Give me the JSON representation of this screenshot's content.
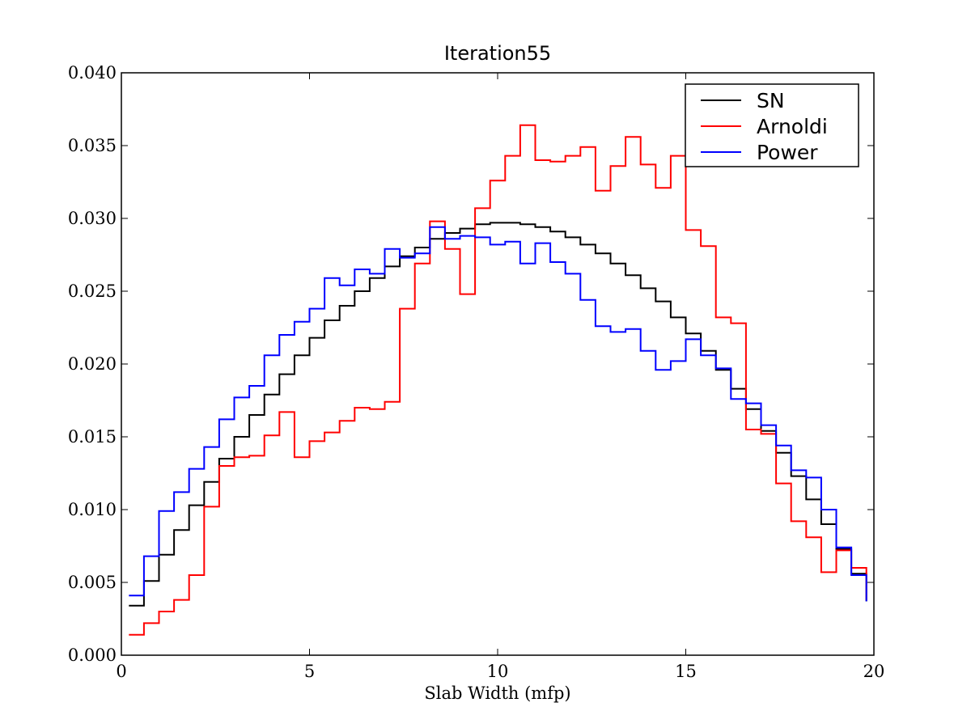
{
  "chart_data": {
    "type": "line",
    "step": "post",
    "title": "Iteration55",
    "xlabel": "Slab Width (mfp)",
    "ylabel": "",
    "xlim": [
      0,
      20
    ],
    "ylim": [
      0,
      0.04
    ],
    "xticks": [
      0,
      5,
      10,
      15,
      20
    ],
    "yticks": [
      0,
      0.005,
      0.01,
      0.015,
      0.02,
      0.025,
      0.03,
      0.035,
      0.04
    ],
    "xtick_labels": [
      "0",
      "5",
      "10",
      "15",
      "20"
    ],
    "ytick_labels": [
      "0.000",
      "0.005",
      "0.010",
      "0.015",
      "0.020",
      "0.025",
      "0.030",
      "0.035",
      "0.040"
    ],
    "grid": false,
    "legend_position": "top-right",
    "bin_edges": [
      0.2,
      0.6,
      1.0,
      1.4,
      1.8,
      2.2,
      2.6,
      3.0,
      3.4,
      3.8,
      4.2,
      4.6,
      5.0,
      5.4,
      5.8,
      6.2,
      6.6,
      7.0,
      7.4,
      7.8,
      8.2,
      8.6,
      9.0,
      9.4,
      9.8,
      10.2,
      10.6,
      11.0,
      11.4,
      11.8,
      12.2,
      12.6,
      13.0,
      13.4,
      13.8,
      14.2,
      14.6,
      15.0,
      15.4,
      15.8,
      16.2,
      16.6,
      17.0,
      17.4,
      17.8,
      18.2,
      18.6,
      19.0,
      19.4,
      19.8
    ],
    "series": [
      {
        "name": "SN",
        "color": "#000000",
        "values": [
          0.0034,
          0.0051,
          0.0069,
          0.0086,
          0.0103,
          0.0119,
          0.0135,
          0.015,
          0.0165,
          0.0179,
          0.0193,
          0.0206,
          0.0218,
          0.023,
          0.024,
          0.025,
          0.0259,
          0.0267,
          0.0274,
          0.028,
          0.0286,
          0.029,
          0.0293,
          0.0296,
          0.0297,
          0.0297,
          0.0296,
          0.0294,
          0.0291,
          0.0287,
          0.0282,
          0.0276,
          0.0269,
          0.0261,
          0.0252,
          0.0243,
          0.0232,
          0.0221,
          0.0209,
          0.0196,
          0.0183,
          0.0169,
          0.0154,
          0.0139,
          0.0123,
          0.0107,
          0.009,
          0.0073,
          0.0056,
          0.0037
        ]
      },
      {
        "name": "Arnoldi",
        "color": "#ff0000",
        "values": [
          0.0014,
          0.0022,
          0.003,
          0.0038,
          0.0055,
          0.0102,
          0.013,
          0.0136,
          0.0137,
          0.0151,
          0.0167,
          0.0136,
          0.0147,
          0.0153,
          0.0161,
          0.017,
          0.0169,
          0.0174,
          0.0238,
          0.0269,
          0.0298,
          0.0279,
          0.0248,
          0.0307,
          0.0326,
          0.0343,
          0.0364,
          0.034,
          0.0339,
          0.0343,
          0.0349,
          0.0319,
          0.0336,
          0.0356,
          0.0337,
          0.0321,
          0.0343,
          0.0292,
          0.0281,
          0.0232,
          0.0228,
          0.0155,
          0.0152,
          0.0118,
          0.0092,
          0.0081,
          0.0057,
          0.0072,
          0.006,
          0.0038
        ]
      },
      {
        "name": "Power",
        "color": "#0000ff",
        "values": [
          0.0041,
          0.0068,
          0.0099,
          0.0112,
          0.0128,
          0.0143,
          0.0162,
          0.0177,
          0.0185,
          0.0206,
          0.022,
          0.0229,
          0.0238,
          0.0259,
          0.0254,
          0.0265,
          0.0262,
          0.0279,
          0.0273,
          0.0276,
          0.0294,
          0.0286,
          0.0288,
          0.0287,
          0.0282,
          0.0284,
          0.0269,
          0.0283,
          0.027,
          0.0262,
          0.0244,
          0.0226,
          0.0222,
          0.0224,
          0.0209,
          0.0196,
          0.0202,
          0.0217,
          0.0206,
          0.0197,
          0.0176,
          0.0173,
          0.0158,
          0.0144,
          0.0127,
          0.0122,
          0.01,
          0.0074,
          0.0055,
          0.0037
        ]
      }
    ]
  }
}
